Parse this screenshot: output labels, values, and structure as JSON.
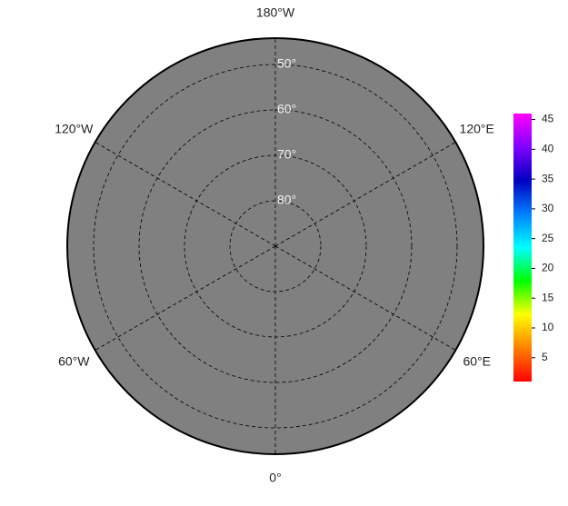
{
  "map": {
    "projection": "north-polar-stereographic",
    "longitude_labels": [
      {
        "value": -180,
        "label": "180°W"
      },
      {
        "value": -120,
        "label": "120°W"
      },
      {
        "value": -60,
        "label": "60°W"
      },
      {
        "value": 0,
        "label": "0°"
      },
      {
        "value": 60,
        "label": "60°E"
      },
      {
        "value": 120,
        "label": "120°E"
      }
    ],
    "latitude_labels": [
      {
        "value": 50,
        "label": "50°"
      },
      {
        "value": 60,
        "label": "60°"
      },
      {
        "value": 70,
        "label": "70°"
      },
      {
        "value": 80,
        "label": "80°"
      }
    ],
    "colorbar": {
      "lim": [
        1,
        46
      ],
      "ticks": [
        5,
        10,
        15,
        20,
        25,
        30,
        35,
        40,
        45
      ],
      "colors": [
        "#ff0000",
        "#ff8000",
        "#ffff00",
        "#00ff00",
        "#00ffff",
        "#0080ff",
        "#0000c0",
        "#8000ff",
        "#ff00ff"
      ]
    }
  }
}
